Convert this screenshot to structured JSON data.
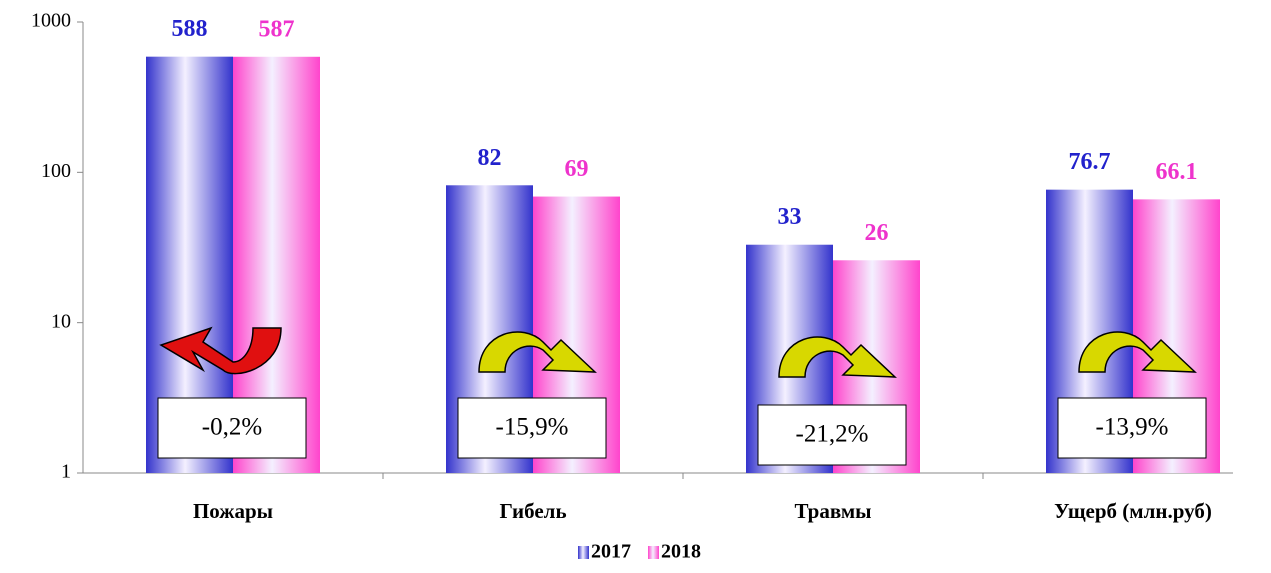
{
  "chart_data": {
    "type": "bar",
    "log_scale": true,
    "categories": [
      "Пожары",
      "Гибель",
      "Травмы",
      "Ущерб (млн.руб)"
    ],
    "series": [
      {
        "name": "2017",
        "color": "#3333cc",
        "values": [
          588,
          82,
          33,
          76.7
        ]
      },
      {
        "name": "2018",
        "color": "#ff44cc",
        "values": [
          587,
          69,
          26,
          66.1
        ]
      }
    ],
    "ylim": [
      1,
      1000
    ],
    "yticks": [
      1,
      10,
      100,
      1000
    ],
    "annotations": [
      "-0,2%",
      "-15,9%",
      "-21,2%",
      "-13,9%"
    ],
    "legend": "bottom"
  }
}
